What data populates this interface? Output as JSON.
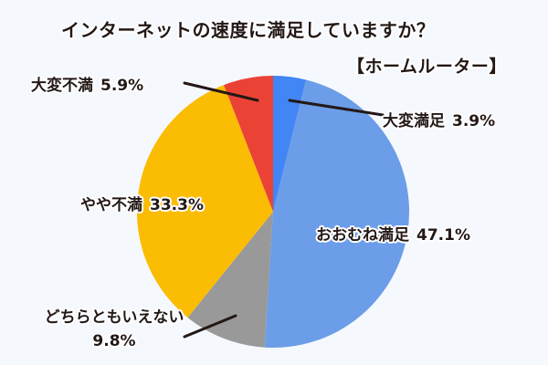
{
  "chart_data": {
    "type": "pie",
    "title": "インターネットの速度に満足していますか？",
    "subtitle": "【ホームルーター】",
    "start_angle_deg": 0,
    "direction": "clockwise",
    "categories": [
      "大変満足",
      "おおむね満足",
      "どちらともいえない",
      "やや不満",
      "大変不満"
    ],
    "values": [
      3.9,
      47.1,
      9.8,
      33.3,
      5.9
    ],
    "unit": "%",
    "colors": [
      "#4285f4",
      "#6b9de8",
      "#999999",
      "#fbbc04",
      "#ea4335"
    ],
    "labels": [
      {
        "name": "大変満足",
        "pct": "3.9%"
      },
      {
        "name": "おおむね満足",
        "pct": "47.1%"
      },
      {
        "name": "どちらともいえない",
        "pct": "9.8%"
      },
      {
        "name": "やや不満",
        "pct": "33.3%"
      },
      {
        "name": "大変不満",
        "pct": "5.9%"
      }
    ],
    "legend": "none (labels placed directly with leader lines)"
  },
  "page": {
    "background": "#f5f8fd",
    "text_color": "#231815"
  }
}
